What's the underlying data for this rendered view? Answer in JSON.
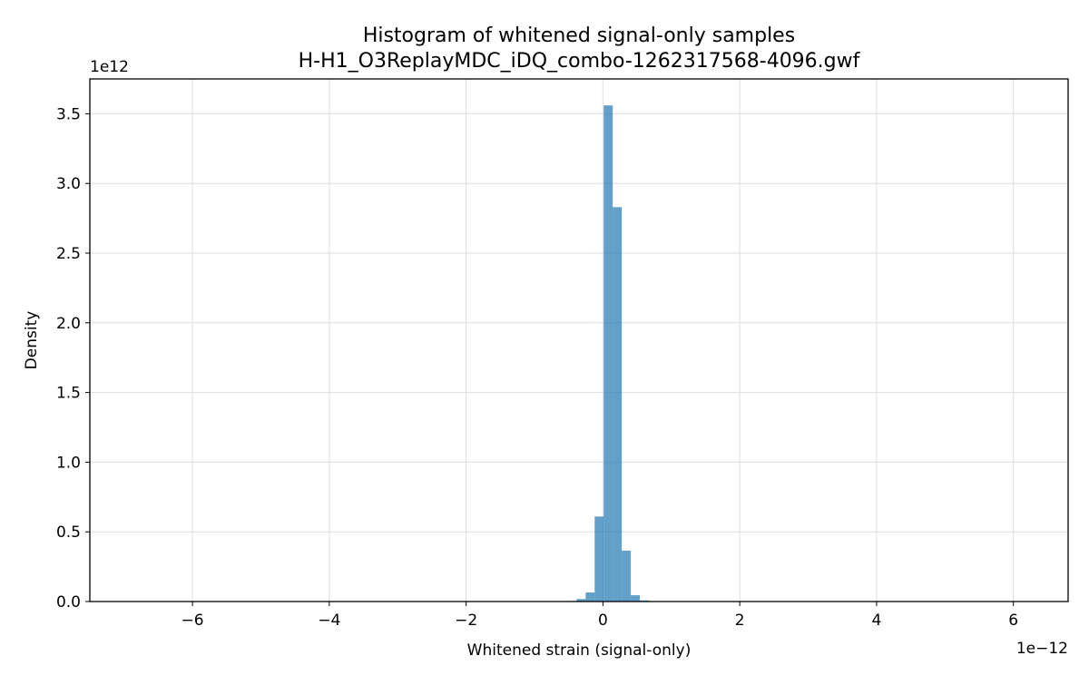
{
  "chart_data": {
    "type": "histogram",
    "title": "Histogram of whitened signal-only samples",
    "subtitle": "H-H1_O3ReplayMDC_iDQ_combo-1262317568-4096.gwf",
    "xlabel": "Whitened strain (signal-only)",
    "ylabel": "Density",
    "x_offset_label": "1e−12",
    "y_offset_label": "1e12",
    "x_scale": 1e-12,
    "y_scale": 1000000000000.0,
    "xlim": [
      -7.5,
      6.8
    ],
    "ylim": [
      0,
      3.75
    ],
    "x_ticks": [
      -6,
      -4,
      -2,
      0,
      2,
      4,
      6
    ],
    "x_tick_labels": [
      "−6",
      "−4",
      "−2",
      "0",
      "2",
      "4",
      "6"
    ],
    "y_ticks": [
      0.0,
      0.5,
      1.0,
      1.5,
      2.0,
      2.5,
      3.0,
      3.5
    ],
    "y_tick_labels": [
      "0.0",
      "0.5",
      "1.0",
      "1.5",
      "2.0",
      "2.5",
      "3.0",
      "3.5"
    ],
    "grid": true,
    "bar_color": "#1f77b4",
    "bins": [
      {
        "x0": -0.517,
        "x1": -0.385,
        "value": 0.004
      },
      {
        "x0": -0.385,
        "x1": -0.253,
        "value": 0.018
      },
      {
        "x0": -0.253,
        "x1": -0.121,
        "value": 0.065
      },
      {
        "x0": -0.121,
        "x1": 0.011,
        "value": 0.61
      },
      {
        "x0": 0.011,
        "x1": 0.143,
        "value": 3.56
      },
      {
        "x0": 0.143,
        "x1": 0.275,
        "value": 2.83
      },
      {
        "x0": 0.275,
        "x1": 0.407,
        "value": 0.365
      },
      {
        "x0": 0.407,
        "x1": 0.539,
        "value": 0.045
      },
      {
        "x0": 0.539,
        "x1": 0.671,
        "value": 0.008
      }
    ]
  }
}
